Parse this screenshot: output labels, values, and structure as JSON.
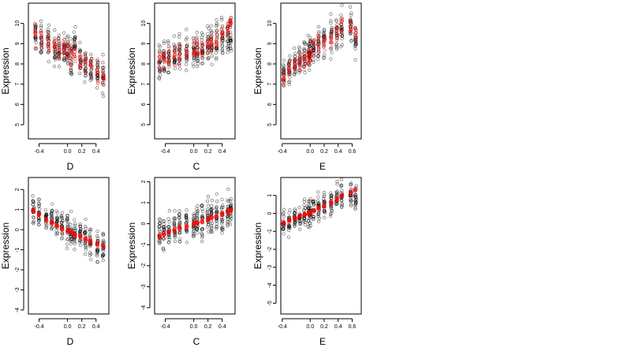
{
  "chart_data": [
    {
      "type": "scatter",
      "xlabel": "D",
      "ylabel": "Expression",
      "xlim": [
        -0.55,
        0.58
      ],
      "ylim": [
        4.3,
        11.0
      ],
      "xticks": [
        "-0.4",
        "0.0",
        "0.2",
        "0.4"
      ],
      "xtick_values": [
        -0.4,
        0.0,
        0.2,
        0.4
      ],
      "yticks": [
        "5",
        "6",
        "7",
        "8",
        "9",
        "10"
      ],
      "ytick_values": [
        5,
        6,
        7,
        8,
        9,
        10
      ],
      "series": [
        {
          "color": "#000000",
          "kind": "observed",
          "x_clusters": [
            -0.45,
            -0.37,
            -0.27,
            -0.18,
            -0.12,
            -0.05,
            0.0,
            0.05,
            0.1,
            0.18,
            0.25,
            0.33,
            0.42,
            0.5
          ],
          "y_center": [
            9.4,
            9.2,
            9.0,
            8.8,
            8.7,
            8.6,
            8.7,
            8.4,
            9.0,
            8.2,
            8.0,
            7.8,
            7.6,
            7.4
          ],
          "spread": 1.0
        },
        {
          "color": "#ff0000",
          "kind": "fitted",
          "x_clusters": [
            -0.45,
            -0.37,
            -0.27,
            -0.18,
            -0.12,
            -0.05,
            0.0,
            0.05,
            0.1,
            0.18,
            0.25,
            0.33,
            0.42,
            0.5
          ],
          "y_center": [
            9.5,
            9.3,
            9.1,
            8.9,
            8.8,
            8.7,
            8.6,
            8.5,
            8.5,
            8.2,
            8.0,
            7.8,
            7.6,
            7.4
          ],
          "spread": 0.7
        }
      ]
    },
    {
      "type": "scatter",
      "xlabel": "C",
      "ylabel": "Expression",
      "xlim": [
        -0.55,
        0.58
      ],
      "ylim": [
        4.3,
        11.0
      ],
      "xticks": [
        "-0.4",
        "0.0",
        "0.2",
        "0.4"
      ],
      "xtick_values": [
        -0.4,
        0.0,
        0.2,
        0.4
      ],
      "yticks": [
        "5",
        "6",
        "7",
        "8",
        "9",
        "10"
      ],
      "ytick_values": [
        5,
        6,
        7,
        8,
        9,
        10
      ],
      "series": [
        {
          "color": "#000000",
          "kind": "observed",
          "x_clusters": [
            -0.48,
            -0.42,
            -0.35,
            -0.27,
            -0.2,
            -0.1,
            0.0,
            0.05,
            0.12,
            0.2,
            0.25,
            0.32,
            0.4,
            0.48,
            0.52
          ],
          "y_center": [
            8.0,
            8.1,
            8.2,
            8.3,
            8.4,
            8.6,
            8.7,
            8.7,
            8.8,
            8.9,
            9.0,
            9.1,
            9.2,
            9.4,
            9.5
          ],
          "spread": 1.1
        },
        {
          "color": "#ff0000",
          "kind": "fitted",
          "x_clusters": [
            -0.48,
            -0.42,
            -0.35,
            -0.27,
            -0.2,
            -0.1,
            0.0,
            0.05,
            0.12,
            0.2,
            0.25,
            0.32,
            0.4,
            0.48,
            0.52
          ],
          "y_center": [
            8.1,
            8.2,
            8.3,
            8.4,
            8.5,
            8.6,
            8.7,
            8.8,
            8.8,
            9.0,
            9.1,
            9.2,
            9.4,
            9.7,
            10.0
          ],
          "spread": 0.6
        }
      ]
    },
    {
      "type": "scatter",
      "xlabel": "E",
      "ylabel": "Expression",
      "xlim": [
        -0.42,
        0.73
      ],
      "ylim": [
        4.3,
        11.0
      ],
      "xticks": [
        "-0.4",
        "0.0",
        "0.2",
        "0.4",
        "0.6"
      ],
      "xtick_values": [
        -0.4,
        0.0,
        0.2,
        0.4,
        0.6
      ],
      "yticks": [
        "5",
        "6",
        "7",
        "8",
        "9",
        "10"
      ],
      "ytick_values": [
        5,
        6,
        7,
        8,
        9,
        10
      ],
      "series": [
        {
          "color": "#000000",
          "kind": "observed",
          "x_clusters": [
            -0.38,
            -0.3,
            -0.22,
            -0.15,
            -0.08,
            -0.02,
            0.0,
            0.05,
            0.12,
            0.2,
            0.3,
            0.38,
            0.45,
            0.58,
            0.65
          ],
          "y_center": [
            7.6,
            7.8,
            8.0,
            8.2,
            8.4,
            8.5,
            8.6,
            8.8,
            9.0,
            9.1,
            9.3,
            9.5,
            9.8,
            9.8,
            9.2
          ],
          "spread": 1.0
        },
        {
          "color": "#ff0000",
          "kind": "fitted",
          "x_clusters": [
            -0.38,
            -0.3,
            -0.22,
            -0.15,
            -0.08,
            -0.02,
            0.0,
            0.05,
            0.12,
            0.2,
            0.3,
            0.38,
            0.45,
            0.58,
            0.65
          ],
          "y_center": [
            7.3,
            7.6,
            7.9,
            8.1,
            8.3,
            8.5,
            8.6,
            8.8,
            9.0,
            9.2,
            9.4,
            9.6,
            9.9,
            9.8,
            9.6
          ],
          "spread": 0.6
        }
      ]
    },
    {
      "type": "scatter",
      "xlabel": "D",
      "ylabel": "Expression",
      "xlim": [
        -0.55,
        0.58
      ],
      "ylim": [
        -4.2,
        2.6
      ],
      "xticks": [
        "-0.4",
        "0.0",
        "0.2",
        "0.4"
      ],
      "xtick_values": [
        -0.4,
        0.0,
        0.2,
        0.4
      ],
      "yticks": [
        "-4",
        "-3",
        "-2",
        "-1",
        "0",
        "1",
        "2"
      ],
      "ytick_values": [
        -4,
        -3,
        -2,
        -1,
        0,
        1,
        2
      ],
      "series": [
        {
          "color": "#000000",
          "kind": "observed",
          "x_clusters": [
            -0.48,
            -0.4,
            -0.3,
            -0.22,
            -0.15,
            -0.08,
            0.0,
            0.05,
            0.1,
            0.18,
            0.25,
            0.32,
            0.42,
            0.5
          ],
          "y_center": [
            1.0,
            0.8,
            0.5,
            0.4,
            0.3,
            0.2,
            0.0,
            -0.1,
            -0.3,
            -0.3,
            -0.5,
            -0.6,
            -0.8,
            -0.8
          ],
          "spread": 0.9
        },
        {
          "color": "#ff0000",
          "kind": "fitted",
          "x_clusters": [
            -0.48,
            -0.4,
            -0.3,
            -0.22,
            -0.15,
            -0.08,
            0.0,
            0.05,
            0.1,
            0.18,
            0.25,
            0.32,
            0.42,
            0.5
          ],
          "y_center": [
            0.95,
            0.75,
            0.5,
            0.35,
            0.2,
            0.05,
            -0.05,
            -0.15,
            -0.25,
            -0.35,
            -0.45,
            -0.55,
            -0.7,
            -0.85
          ],
          "spread": 0.12
        }
      ]
    },
    {
      "type": "scatter",
      "xlabel": "C",
      "ylabel": "Expression",
      "xlim": [
        -0.55,
        0.58
      ],
      "ylim": [
        -4.3,
        2.2
      ],
      "xticks": [
        "-0.4",
        "0.0",
        "0.2",
        "0.4"
      ],
      "xtick_values": [
        -0.4,
        0.0,
        0.2,
        0.4
      ],
      "yticks": [
        "-4",
        "-3",
        "-2",
        "-1",
        "0",
        "1",
        "2"
      ],
      "ytick_values": [
        -4,
        -3,
        -2,
        -1,
        0,
        1,
        2
      ],
      "series": [
        {
          "color": "#000000",
          "kind": "observed",
          "x_clusters": [
            -0.48,
            -0.42,
            -0.35,
            -0.27,
            -0.2,
            -0.1,
            0.0,
            0.05,
            0.12,
            0.2,
            0.25,
            0.32,
            0.4,
            0.48,
            0.52
          ],
          "y_center": [
            -0.5,
            -0.4,
            -0.3,
            -0.2,
            -0.1,
            0.0,
            0.1,
            0.1,
            0.2,
            0.2,
            0.3,
            0.4,
            0.4,
            0.5,
            0.6
          ],
          "spread": 1.0
        },
        {
          "color": "#ff0000",
          "kind": "fitted",
          "x_clusters": [
            -0.48,
            -0.42,
            -0.35,
            -0.27,
            -0.2,
            -0.1,
            0.0,
            0.05,
            0.12,
            0.2,
            0.25,
            0.32,
            0.4,
            0.48,
            0.52
          ],
          "y_center": [
            -0.6,
            -0.5,
            -0.4,
            -0.3,
            -0.2,
            -0.1,
            0.0,
            0.05,
            0.1,
            0.2,
            0.3,
            0.35,
            0.45,
            0.55,
            0.65
          ],
          "spread": 0.1
        }
      ]
    },
    {
      "type": "scatter",
      "xlabel": "E",
      "ylabel": "Expression",
      "xlim": [
        -0.42,
        0.73
      ],
      "ylim": [
        -5.6,
        2.0
      ],
      "xticks": [
        "-0.4",
        "0.0",
        "0.2",
        "0.4",
        "0.6"
      ],
      "xtick_values": [
        -0.4,
        0.0,
        0.2,
        0.4,
        0.6
      ],
      "yticks": [
        "-5",
        "-4",
        "-3",
        "-2",
        "-1",
        "0",
        "1"
      ],
      "ytick_values": [
        -5,
        -4,
        -3,
        -2,
        -1,
        0,
        1
      ],
      "series": [
        {
          "color": "#000000",
          "kind": "observed",
          "x_clusters": [
            -0.38,
            -0.3,
            -0.22,
            -0.15,
            -0.08,
            -0.02,
            0.0,
            0.05,
            0.12,
            0.2,
            0.3,
            0.38,
            0.45,
            0.58,
            0.65
          ],
          "y_center": [
            -0.6,
            -0.5,
            -0.3,
            -0.2,
            -0.1,
            0.0,
            0.1,
            0.2,
            0.3,
            0.4,
            0.6,
            0.8,
            1.0,
            1.0,
            0.9
          ],
          "spread": 0.9
        },
        {
          "color": "#ff0000",
          "kind": "fitted",
          "x_clusters": [
            -0.38,
            -0.3,
            -0.22,
            -0.15,
            -0.08,
            -0.02,
            0.0,
            0.05,
            0.12,
            0.2,
            0.3,
            0.38,
            0.45,
            0.58,
            0.65
          ],
          "y_center": [
            -0.55,
            -0.4,
            -0.25,
            -0.15,
            -0.05,
            0.0,
            0.05,
            0.15,
            0.3,
            0.45,
            0.6,
            0.8,
            0.95,
            1.15,
            1.3
          ],
          "spread": 0.1
        }
      ]
    }
  ]
}
